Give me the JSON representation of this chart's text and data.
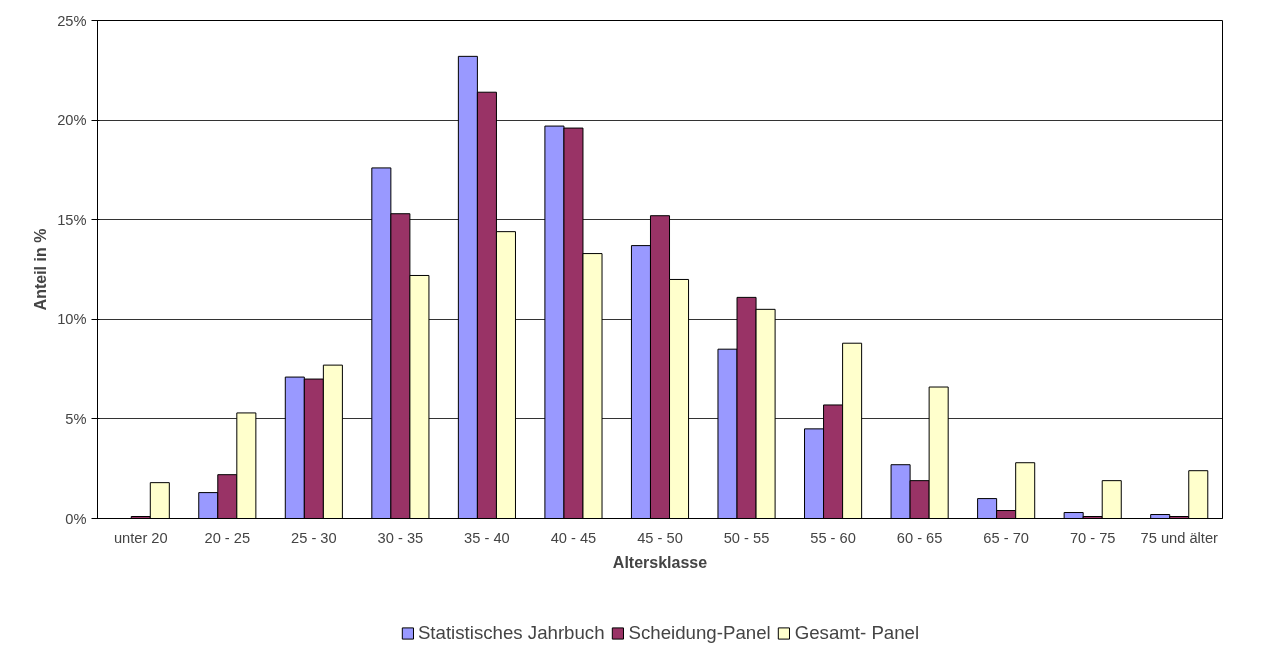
{
  "chart_data": {
    "type": "bar",
    "xlabel": "Altersklasse",
    "ylabel": "Anteil in %",
    "categories": [
      "unter 20",
      "20 - 25",
      "25 - 30",
      "30 - 35",
      "35 - 40",
      "40 - 45",
      "45 - 50",
      "50 - 55",
      "55 - 60",
      "60 - 65",
      "65 - 70",
      "70 - 75",
      "75 und älter"
    ],
    "series": [
      {
        "name": "Statistisches Jahrbuch",
        "color": "#9999ff",
        "values": [
          null,
          1.3,
          7.1,
          17.6,
          23.2,
          19.7,
          13.7,
          8.5,
          4.5,
          2.7,
          1.0,
          0.3,
          0.2
        ]
      },
      {
        "name": "Scheidung-Panel",
        "color": "#993366",
        "values": [
          0.1,
          2.2,
          7.0,
          15.3,
          21.4,
          19.6,
          15.2,
          11.1,
          5.7,
          1.9,
          0.4,
          0.1,
          0.1
        ]
      },
      {
        "name": "Gesamt- Panel",
        "color": "#ffffcc",
        "values": [
          1.8,
          5.3,
          7.7,
          12.2,
          14.4,
          13.3,
          12.0,
          10.5,
          8.8,
          6.6,
          2.8,
          1.9,
          2.4
        ]
      }
    ],
    "ylim": [
      0,
      25
    ],
    "yticks": [
      {
        "value": 0,
        "label": "0%"
      },
      {
        "value": 5,
        "label": "5%"
      },
      {
        "value": 10,
        "label": "10%"
      },
      {
        "value": 15,
        "label": "15%"
      },
      {
        "value": 20,
        "label": "20%"
      },
      {
        "value": 25,
        "label": "25%"
      }
    ],
    "grid": "y",
    "legend": "bottom"
  }
}
